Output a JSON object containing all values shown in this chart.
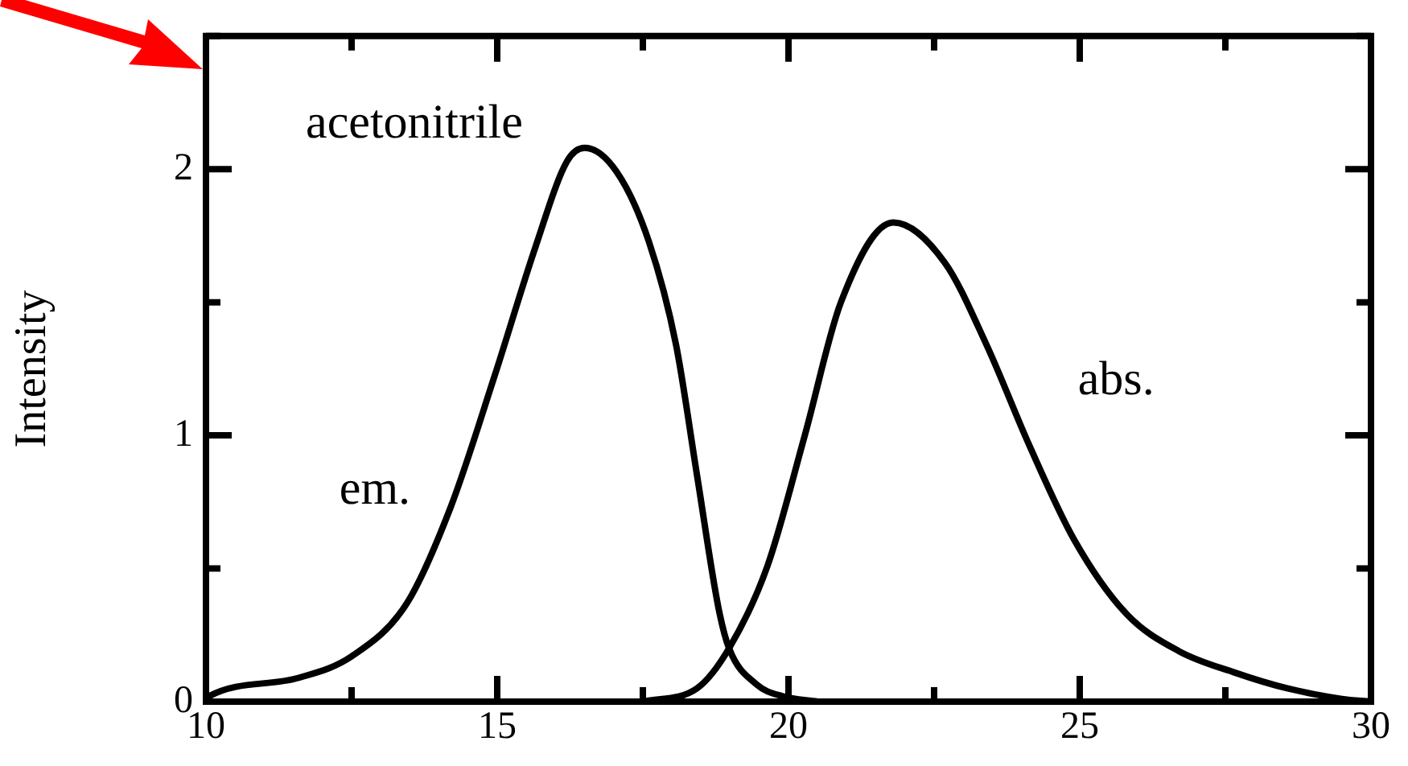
{
  "chart_data": {
    "type": "line",
    "ylabel": "Intensity",
    "annotations": [
      "acetonitrile"
    ],
    "xlim": [
      10,
      30
    ],
    "ylim": [
      0,
      2.5
    ],
    "xticks": [
      10,
      {
        "value": 12.5,
        "label": null
      },
      15,
      {
        "value": 17.5,
        "label": null
      },
      20,
      {
        "value": 22.5,
        "label": null
      },
      25,
      {
        "value": 27.5,
        "label": null
      },
      30
    ],
    "yticks": [
      0,
      {
        "value": 0.5,
        "label": null
      },
      1,
      {
        "value": 1.5,
        "label": null
      },
      2,
      {
        "value": 2.5,
        "label": null
      }
    ],
    "grid": false,
    "legend": false,
    "marker": "none",
    "line_style": "solid",
    "series": [
      {
        "name": "em.",
        "color": "#000000",
        "x": [
          10,
          10.05,
          11.6,
          12.5,
          13.45,
          14.2,
          14.95,
          15.66,
          16.2,
          16.5,
          17.05,
          17.6,
          18.07,
          18.43,
          18.8,
          18.98,
          19.45,
          19.9,
          20.5
        ],
        "values": [
          0.01,
          0.02,
          0.09,
          0.17,
          0.37,
          0.73,
          1.22,
          1.71,
          2.03,
          2.08,
          1.99,
          1.73,
          1.34,
          0.85,
          0.35,
          0.2,
          0.065,
          0.02,
          0
        ]
      },
      {
        "name": "abs.",
        "color": "#000000",
        "x": [
          17.5,
          18.43,
          18.98,
          19.64,
          20.28,
          20.9,
          21.8,
          22.68,
          23.4,
          24.14,
          24.9,
          25.8,
          26.7,
          27.65,
          28.56,
          29.5,
          30
        ],
        "values": [
          0,
          0.05,
          0.2,
          0.51,
          1.0,
          1.5,
          1.8,
          1.65,
          1.34,
          0.96,
          0.61,
          0.33,
          0.19,
          0.11,
          0.05,
          0.01,
          0
        ]
      }
    ]
  }
}
